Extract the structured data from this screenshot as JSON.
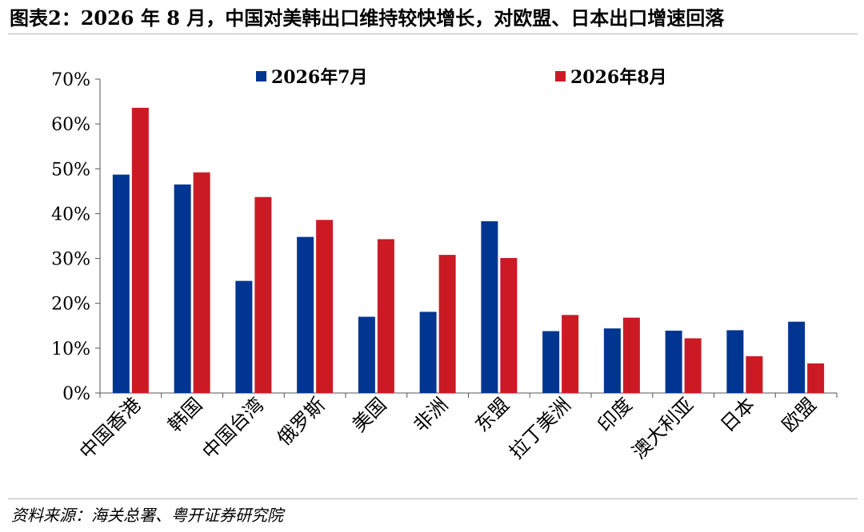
{
  "title": "图表2：2026 年 8 月，中国对美韩出口维持较快增长，对欧盟、日本出口增速回落",
  "source": "资料来源：海关总署、粤开证券研究院",
  "colors": {
    "series_a": "#003591",
    "series_b": "#cc1a24",
    "axis": "#555555"
  },
  "chart_data": {
    "type": "bar",
    "categories": [
      "中国香港",
      "韩国",
      "中国台湾",
      "俄罗斯",
      "美国",
      "非洲",
      "东盟",
      "拉丁美洲",
      "印度",
      "澳大利亚",
      "日本",
      "欧盟"
    ],
    "series": [
      {
        "name": "2026年7月",
        "values": [
          48.7,
          46.5,
          25.0,
          34.8,
          17.0,
          18.1,
          38.3,
          13.8,
          14.4,
          13.9,
          14.0,
          15.9
        ]
      },
      {
        "name": "2026年8月",
        "values": [
          63.6,
          49.2,
          43.7,
          38.6,
          34.3,
          30.8,
          30.1,
          17.4,
          16.8,
          12.2,
          8.2,
          6.6
        ]
      }
    ],
    "yticks": [
      "0%",
      "10%",
      "20%",
      "30%",
      "40%",
      "50%",
      "60%",
      "70%"
    ],
    "ylim": [
      0,
      70
    ],
    "y_unit": "%",
    "grid": false,
    "legend_position": "top"
  }
}
